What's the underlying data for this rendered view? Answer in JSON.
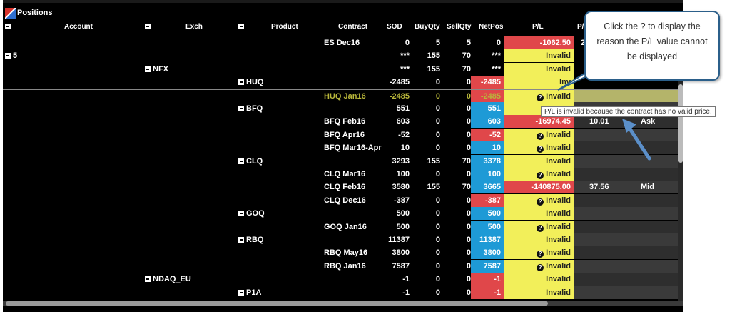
{
  "window": {
    "title": "Positions"
  },
  "columns": {
    "account": "Account",
    "exch": "Exch",
    "product": "Product",
    "contract": "Contract",
    "sod": "SOD",
    "buyqty": "BuyQty",
    "sellqty": "SellQty",
    "netpos": "NetPos",
    "pl": "P/L",
    "extra": "P/"
  },
  "rows": [
    {
      "contract": "ES Dec16",
      "sod": "0",
      "buy": "5",
      "sell": "5",
      "net": "0",
      "pl": "-1062.50",
      "extra1": "2",
      "net_color": "#000000",
      "pl_color": "#e0474a"
    },
    {
      "account": "5",
      "sod": "***",
      "buy": "155",
      "sell": "70",
      "net": "***",
      "pl": "Invalid",
      "net_color": "#000000",
      "pl_color": "#f2ef5a"
    },
    {
      "exch": "NFX",
      "sod": "***",
      "buy": "155",
      "sell": "70",
      "net": "***",
      "pl": "Invalid",
      "net_color": "#000000",
      "pl_color": "#f2ef5a"
    },
    {
      "product": "HUQ",
      "sod": "-2485",
      "buy": "0",
      "sell": "0",
      "net": "-2485",
      "pl": "Inv",
      "net_color": "#e0474a",
      "pl_color": "#f2ef5a"
    },
    {
      "contract": "HUQ Jan16",
      "sod": "-2485",
      "buy": "0",
      "sell": "0",
      "net": "-2485",
      "pl": "Invalid",
      "q": "?",
      "net_color": "#e0474a",
      "pl_color": "#f2ef5a"
    },
    {
      "product": "BFQ",
      "sod": "551",
      "buy": "0",
      "sell": "0",
      "net": "551",
      "pl": "",
      "net_color": "#1e9ad6",
      "pl_color": "#f2ef5a"
    },
    {
      "contract": "BFQ Feb16",
      "sod": "603",
      "buy": "0",
      "sell": "0",
      "net": "603",
      "pl": "-16974.45",
      "extra1": "10.01",
      "extra2": "Ask",
      "net_color": "#1e9ad6",
      "pl_color": "#e0474a"
    },
    {
      "contract": "BFQ Apr16",
      "sod": "-52",
      "buy": "0",
      "sell": "0",
      "net": "-52",
      "pl": "Invalid",
      "q": "?",
      "net_color": "#e0474a",
      "pl_color": "#f2ef5a"
    },
    {
      "contract": "BFQ Mar16-Apr",
      "sod": "10",
      "buy": "0",
      "sell": "0",
      "net": "10",
      "pl": "Invalid",
      "q": "?",
      "net_color": "#1e9ad6",
      "pl_color": "#f2ef5a"
    },
    {
      "product": "CLQ",
      "sod": "3293",
      "buy": "155",
      "sell": "70",
      "net": "3378",
      "pl": "Invalid",
      "net_color": "#1e9ad6",
      "pl_color": "#f2ef5a"
    },
    {
      "contract": "CLQ Mar16",
      "sod": "100",
      "buy": "0",
      "sell": "0",
      "net": "100",
      "pl": "Invalid",
      "q": "?",
      "net_color": "#1e9ad6",
      "pl_color": "#f2ef5a"
    },
    {
      "contract": "CLQ Feb16",
      "sod": "3580",
      "buy": "155",
      "sell": "70",
      "net": "3665",
      "pl": "-140875.00",
      "extra1": "37.56",
      "extra2": "Mid",
      "net_color": "#1e9ad6",
      "pl_color": "#e0474a"
    },
    {
      "contract": "CLQ Dec16",
      "sod": "-387",
      "buy": "0",
      "sell": "0",
      "net": "-387",
      "pl": "Invalid",
      "q": "?",
      "net_color": "#e0474a",
      "pl_color": "#f2ef5a"
    },
    {
      "product": "GOQ",
      "sod": "500",
      "buy": "0",
      "sell": "0",
      "net": "500",
      "pl": "Invalid",
      "net_color": "#1e9ad6",
      "pl_color": "#f2ef5a"
    },
    {
      "contract": "GOQ Jan16",
      "sod": "500",
      "buy": "0",
      "sell": "0",
      "net": "500",
      "pl": "Invalid",
      "q": "?",
      "net_color": "#1e9ad6",
      "pl_color": "#f2ef5a"
    },
    {
      "product": "RBQ",
      "sod": "11387",
      "buy": "0",
      "sell": "0",
      "net": "11387",
      "pl": "Invalid",
      "net_color": "#1e9ad6",
      "pl_color": "#f2ef5a"
    },
    {
      "contract": "RBQ May16",
      "sod": "3800",
      "buy": "0",
      "sell": "0",
      "net": "3800",
      "pl": "Invalid",
      "q": "?",
      "net_color": "#1e9ad6",
      "pl_color": "#f2ef5a"
    },
    {
      "contract": "RBQ Jan16",
      "sod": "7587",
      "buy": "0",
      "sell": "0",
      "net": "7587",
      "pl": "Invalid",
      "q": "?",
      "net_color": "#1e9ad6",
      "pl_color": "#f2ef5a"
    },
    {
      "exch": "NDAQ_EU",
      "sod": "-1",
      "buy": "0",
      "sell": "0",
      "net": "-1",
      "pl": "Invalid",
      "net_color": "#e0474a",
      "pl_color": "#f2ef5a"
    },
    {
      "product": "P1A",
      "sod": "-1",
      "buy": "0",
      "sell": "0",
      "net": "-1",
      "pl": "Invalid",
      "net_color": "#e0474a",
      "pl_color": "#f2ef5a"
    }
  ],
  "callout": {
    "text": "Click the ? to display the reason the P/L value cannot be displayed"
  },
  "tooltip": {
    "text": "P/L is invalid because the contract has no valid price."
  }
}
